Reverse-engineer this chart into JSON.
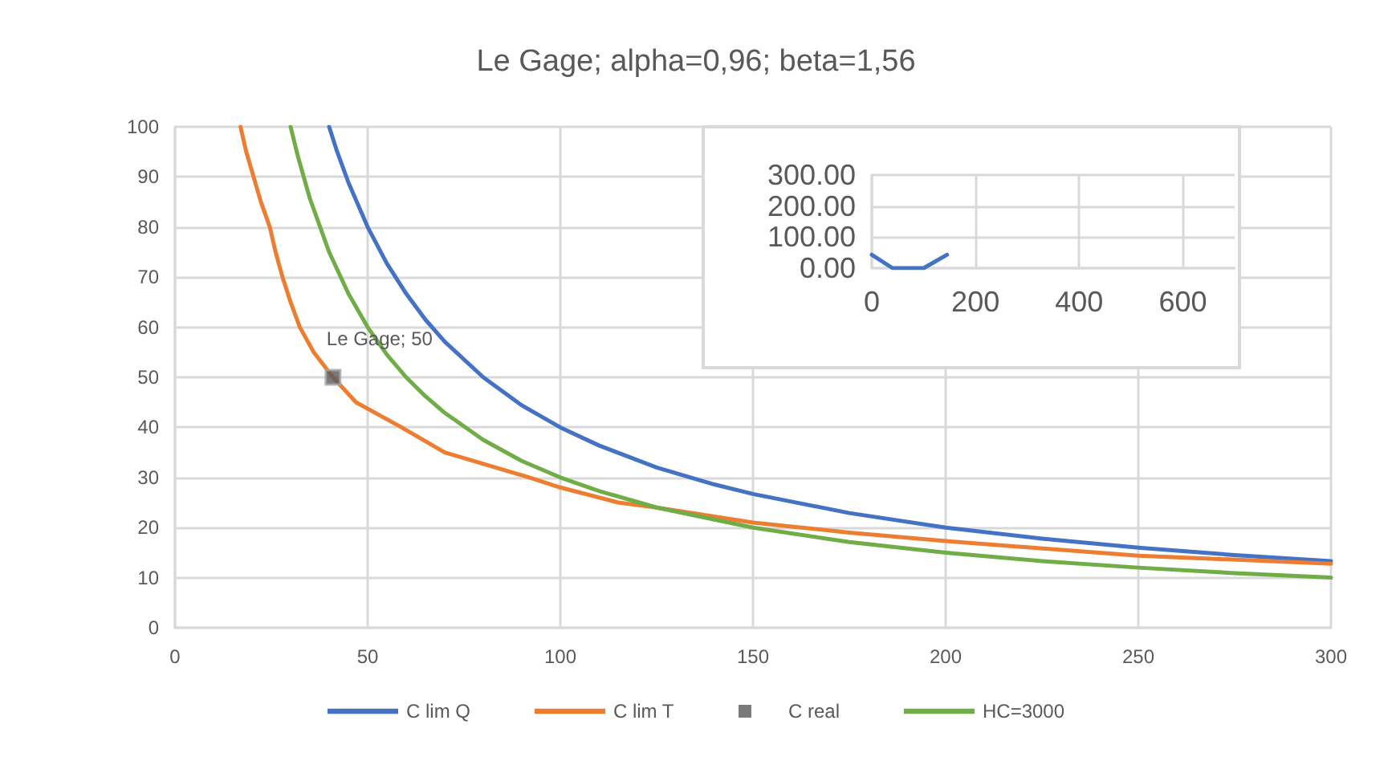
{
  "chart_data": [
    {
      "type": "line",
      "title": "Le Gage; alpha=0,96; beta=1,56",
      "xlim": [
        0,
        300
      ],
      "xticks": [
        0,
        50,
        100,
        150,
        200,
        250,
        300
      ],
      "ylim": [
        0,
        100
      ],
      "yticks": [
        0,
        10,
        20,
        30,
        40,
        50,
        60,
        70,
        80,
        90,
        100
      ],
      "grid": true,
      "legend": "bottom",
      "marker": "none",
      "line_style": "solid",
      "annotations": [
        {
          "text": "Le Gage; 50",
          "x": 41,
          "y": 50
        }
      ],
      "series": [
        {
          "name": "C lim Q",
          "color": "#4472c4",
          "x": [
            40,
            42,
            45,
            50,
            55,
            60,
            65,
            70,
            80,
            90,
            100,
            110,
            125,
            140,
            150,
            175,
            200,
            225,
            250,
            275,
            300
          ],
          "values": [
            100,
            95.2,
            88.9,
            80,
            72.7,
            66.7,
            61.5,
            57.1,
            50,
            44.4,
            40,
            36.4,
            32,
            28.6,
            26.7,
            22.9,
            20,
            17.8,
            16,
            14.5,
            13.3
          ]
        },
        {
          "name": "C lim T",
          "color": "#ed7d31",
          "x": [
            17,
            18.5,
            20.4,
            22.3,
            24.6,
            26.1,
            27.9,
            30,
            32.4,
            36,
            41,
            47,
            58.8,
            70,
            92,
            100,
            115,
            125,
            150,
            175,
            200,
            250,
            300
          ],
          "values": [
            100,
            95,
            90,
            85,
            80,
            75,
            70,
            65,
            60,
            55,
            50,
            45,
            40,
            35,
            30,
            28,
            25,
            24,
            21,
            19,
            17.3,
            14.4,
            12.8
          ]
        },
        {
          "name": "C real",
          "type": "scatter",
          "marker": "square",
          "color": "#595959",
          "x": [
            41
          ],
          "values": [
            50
          ]
        },
        {
          "name": "HC=3000",
          "color": "#70ad47",
          "x": [
            30,
            32,
            35,
            40,
            45,
            50,
            55,
            60,
            65,
            70,
            80,
            90,
            100,
            110,
            125,
            150,
            175,
            200,
            225,
            250,
            275,
            300
          ],
          "values": [
            100,
            93.8,
            85.7,
            75,
            66.7,
            60,
            54.5,
            50,
            46.2,
            42.9,
            37.5,
            33.3,
            30,
            27.3,
            24,
            20,
            17.1,
            15,
            13.3,
            12,
            10.9,
            10
          ]
        }
      ]
    },
    {
      "type": "line",
      "xlim": [
        0,
        700
      ],
      "xticks": [
        0,
        200,
        400,
        600
      ],
      "ylim": [
        0,
        300
      ],
      "yticks": [
        {
          "value": 0,
          "label": "0.00"
        },
        {
          "value": 100,
          "label": "100.00"
        },
        {
          "value": 200,
          "label": "200.00"
        },
        {
          "value": 300,
          "label": "300.00"
        }
      ],
      "grid": true,
      "marker": "none",
      "line_style": "solid",
      "series": [
        {
          "color": "#4472c4",
          "x": [
            0,
            40,
            100,
            145
          ],
          "values": [
            43,
            0,
            0,
            43
          ]
        }
      ]
    }
  ]
}
